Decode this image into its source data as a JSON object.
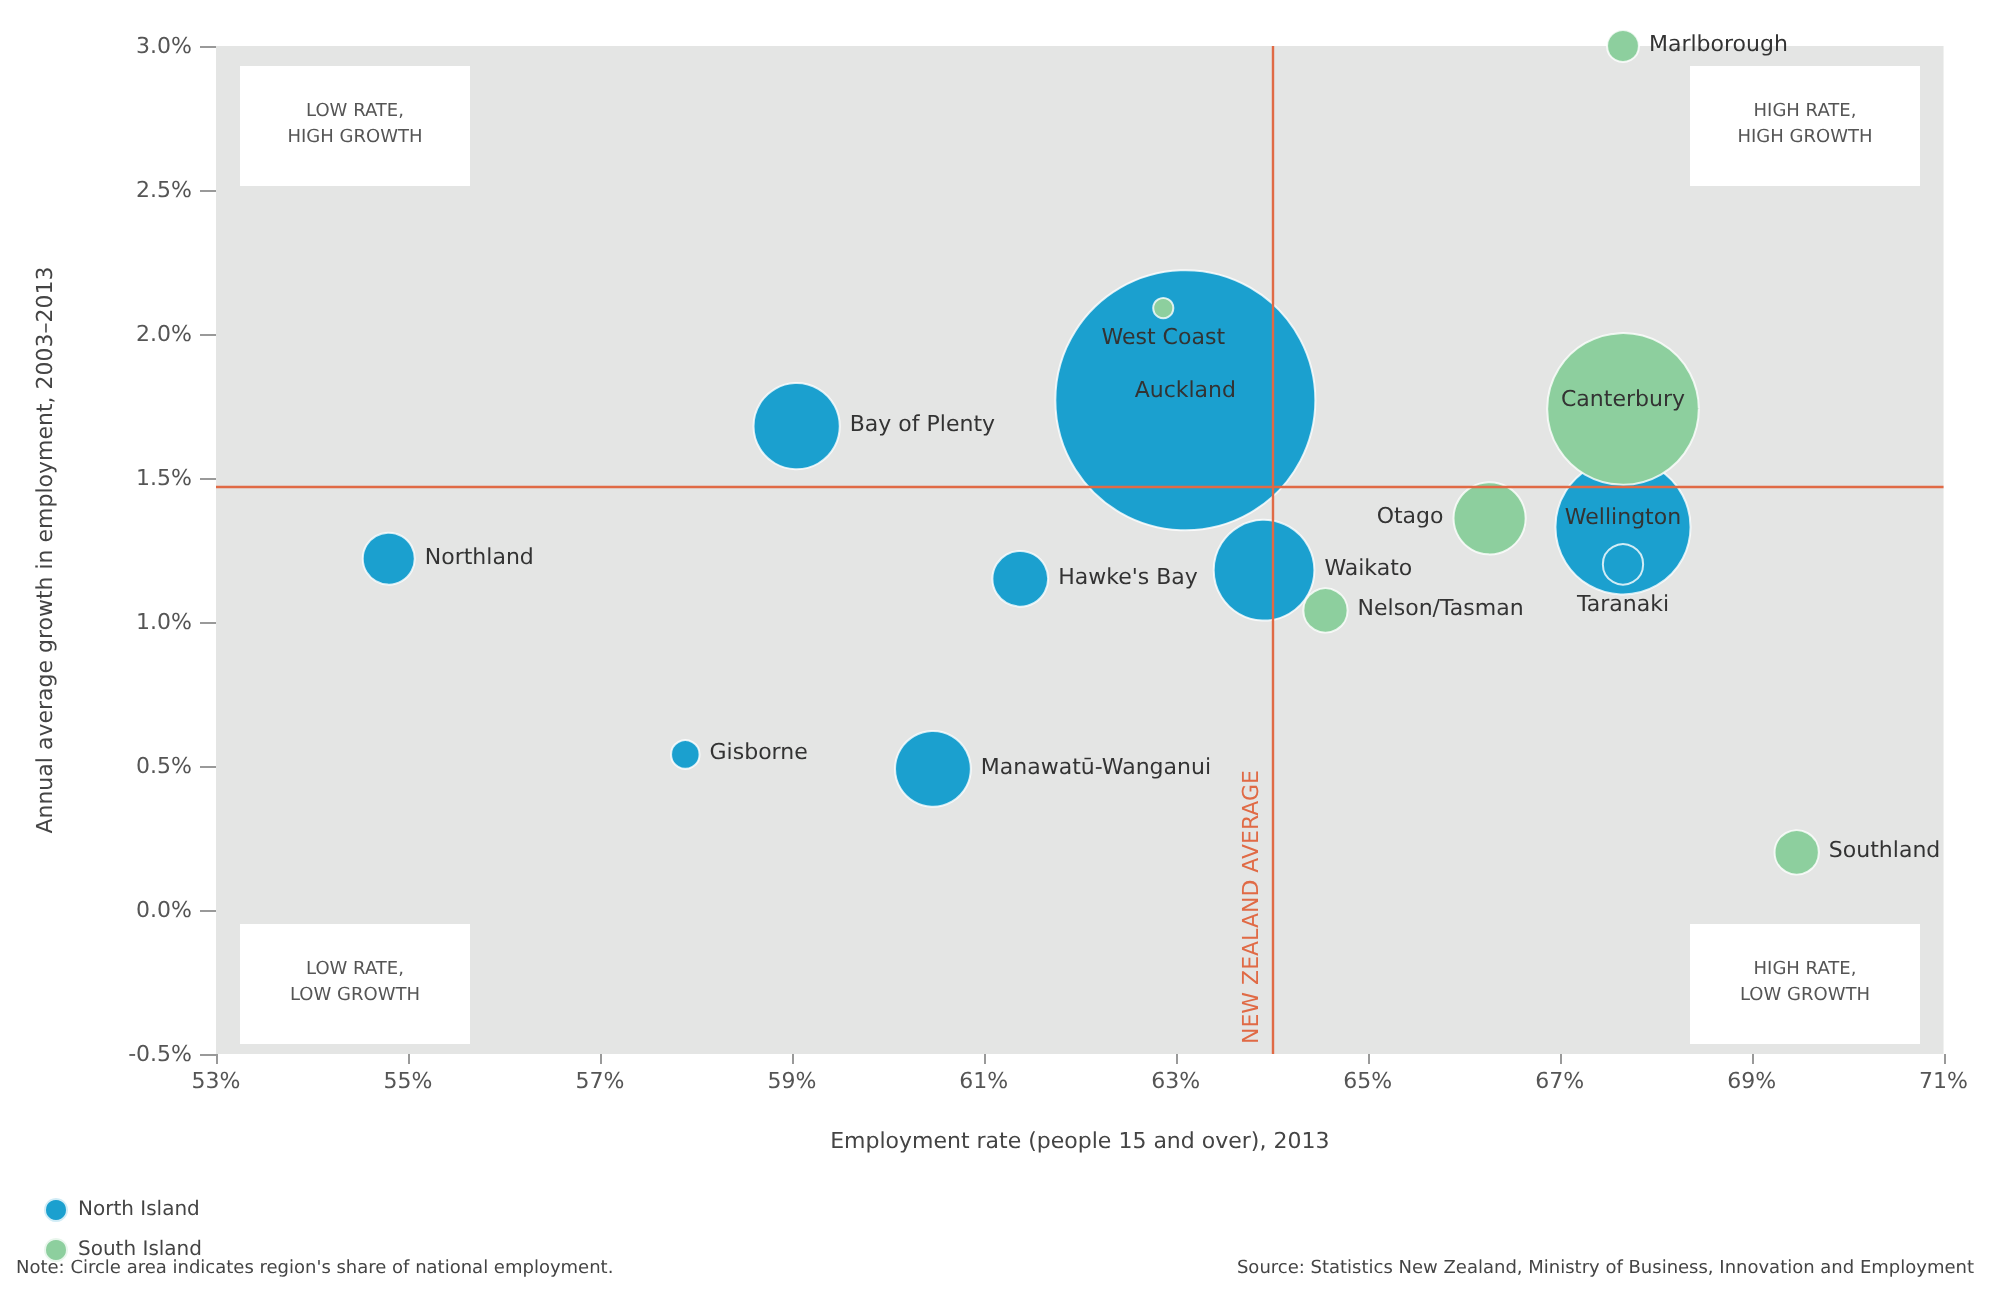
{
  "chart_data": {
    "type": "bubble",
    "xlabel": "Employment rate (people 15 and over), 2013",
    "ylabel": "Annual average growth in employment, 2003–2013",
    "xlim": [
      53,
      71
    ],
    "ylim": [
      -0.5,
      3
    ],
    "xticks": [
      {
        "value": 53,
        "label": "53%"
      },
      {
        "value": 55,
        "label": "55%"
      },
      {
        "value": 57,
        "label": "57%"
      },
      {
        "value": 59,
        "label": "59%"
      },
      {
        "value": 61,
        "label": "61%"
      },
      {
        "value": 63,
        "label": "63%"
      },
      {
        "value": 65,
        "label": "65%"
      },
      {
        "value": 67,
        "label": "67%"
      },
      {
        "value": 69,
        "label": "69%"
      },
      {
        "value": 71,
        "label": "71%"
      }
    ],
    "yticks": [
      {
        "value": -0.5,
        "label": "-0.5%"
      },
      {
        "value": 0,
        "label": "0.0%"
      },
      {
        "value": 0.5,
        "label": "0.5%"
      },
      {
        "value": 1,
        "label": "1.0%"
      },
      {
        "value": 1.5,
        "label": "1.5%"
      },
      {
        "value": 2,
        "label": "2.0%"
      },
      {
        "value": 2.5,
        "label": "2.5%"
      },
      {
        "value": 3,
        "label": "3.0%"
      }
    ],
    "grid": false,
    "legend": "bottom left",
    "series": [
      {
        "name": "North Island",
        "color": "#1ba0cf",
        "x": [
          63.1,
          59.05,
          67.66,
          67.66,
          54.8,
          61.38,
          63.92,
          57.89,
          60.47
        ],
        "values": [
          1.77,
          1.68,
          1.33,
          1.2,
          1.22,
          1.15,
          1.18,
          0.54,
          0.49
        ],
        "sizes": [
          1,
          0.11,
          0.27,
          0.024,
          0.04,
          0.046,
          0.15,
          0.012,
          0.085
        ]
      },
      {
        "name": "South Island",
        "color": "#8dcf9e",
        "x": [
          67.66,
          62.87,
          67.66,
          66.27,
          64.56,
          69.47
        ],
        "values": [
          3.0,
          2.09,
          1.74,
          1.36,
          1.04,
          0.2
        ],
        "sizes": [
          0.015,
          0.006,
          0.34,
          0.077,
          0.029,
          0.029
        ]
      }
    ],
    "ref_lines": [
      {
        "axis": "x",
        "value": 64,
        "label": "NEW ZEALAND AVERAGE",
        "color": "#e06a45"
      },
      {
        "axis": "y",
        "value": 1.47,
        "color": "#e06a45"
      }
    ],
    "annotations": [
      "LOW RATE,\nHIGH GROWTH",
      "HIGH RATE,\nHIGH GROWTH",
      "LOW RATE,\nLOW GROWTH",
      "HIGH RATE,\nLOW GROWTH",
      "Note: Circle area indicates region's share of national employment.",
      "Source: Statistics New Zealand, Ministry of Business, Innovation and Employment",
      {
        "text": "Auckland",
        "x": 63.1,
        "y": 1.77
      },
      {
        "text": "Bay of Plenty",
        "x": 59.05,
        "y": 1.68
      },
      {
        "text": "Wellington",
        "x": 67.66,
        "y": 1.33
      },
      {
        "text": "Taranaki",
        "x": 67.66,
        "y": 1.2
      },
      {
        "text": "Northland",
        "x": 54.8,
        "y": 1.22
      },
      {
        "text": "Hawke's Bay",
        "x": 61.38,
        "y": 1.15
      },
      {
        "text": "Waikato",
        "x": 63.92,
        "y": 1.18
      },
      {
        "text": "Gisborne",
        "x": 57.89,
        "y": 0.54
      },
      {
        "text": "Manawatū-Wanganui",
        "x": 60.47,
        "y": 0.49
      },
      {
        "text": "Marlborough",
        "x": 67.66,
        "y": 3.0
      },
      {
        "text": "West Coast",
        "x": 62.87,
        "y": 2.09
      },
      {
        "text": "Canterbury",
        "x": 67.66,
        "y": 1.74
      },
      {
        "text": "Otago",
        "x": 66.27,
        "y": 1.36
      },
      {
        "text": "Nelson/Tasman",
        "x": 64.56,
        "y": 1.04
      },
      {
        "text": "Southland",
        "x": 69.47,
        "y": 0.2
      }
    ]
  }
}
